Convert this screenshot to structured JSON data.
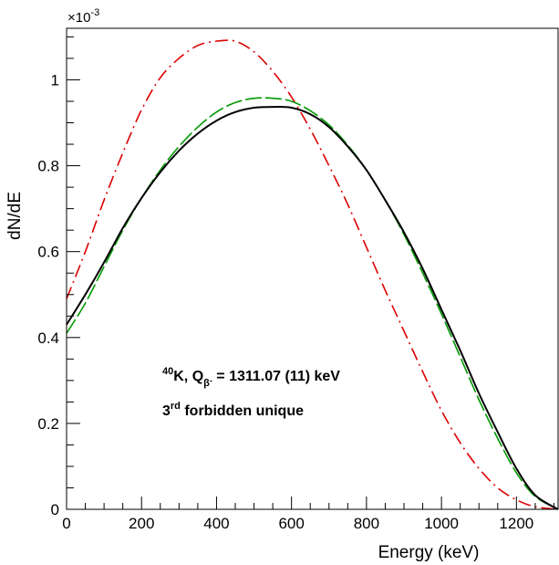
{
  "chart_data": {
    "type": "line",
    "title": "",
    "xlabel": "Energy (keV)",
    "ylabel": "dN/dE",
    "y_multiplier_label": "×10",
    "y_multiplier_exponent": "-3",
    "xlim": [
      0,
      1311.07
    ],
    "ylim": [
      0,
      1.12
    ],
    "x_ticks": [
      0,
      200,
      400,
      600,
      800,
      1000,
      1200
    ],
    "x_tick_labels": [
      "0",
      "200",
      "400",
      "600",
      "800",
      "1000",
      "1200"
    ],
    "y_ticks": [
      0,
      0.2,
      0.4,
      0.6,
      0.8,
      1.0
    ],
    "y_tick_labels": [
      "0",
      "0.2",
      "0.4",
      "0.6",
      "0.8",
      "1"
    ],
    "grid": false,
    "legend": "none",
    "annotation": {
      "line1_super": "40",
      "line1_main": "K, Q",
      "line1_sub": "β",
      "line1_subsup": "-",
      "line1_tail": " = 1311.07 (11) keV",
      "line2_super": "rd",
      "line2_pre": "3",
      "line2_tail": " forbidden unique"
    },
    "series": [
      {
        "color": "#dd0000",
        "dash": "dashdot",
        "x": [
          0,
          50,
          100,
          150,
          200,
          250,
          300,
          350,
          400,
          450,
          500,
          550,
          600,
          650,
          700,
          750,
          800,
          850,
          900,
          950,
          1000,
          1050,
          1100,
          1150,
          1200,
          1250,
          1311
        ],
        "y": [
          0.49,
          0.6,
          0.72,
          0.83,
          0.93,
          1.005,
          1.05,
          1.08,
          1.09,
          1.09,
          1.065,
          1.02,
          0.96,
          0.885,
          0.8,
          0.71,
          0.61,
          0.51,
          0.415,
          0.32,
          0.23,
          0.155,
          0.095,
          0.05,
          0.022,
          0.006,
          0.0
        ]
      },
      {
        "color": "#009900",
        "dash": "longdash",
        "x": [
          0,
          50,
          100,
          150,
          200,
          250,
          300,
          350,
          400,
          450,
          500,
          550,
          600,
          650,
          700,
          750,
          800,
          850,
          900,
          950,
          1000,
          1050,
          1100,
          1150,
          1200,
          1250,
          1311
        ],
        "y": [
          0.41,
          0.48,
          0.565,
          0.65,
          0.725,
          0.79,
          0.845,
          0.89,
          0.925,
          0.947,
          0.957,
          0.957,
          0.95,
          0.928,
          0.895,
          0.848,
          0.79,
          0.72,
          0.64,
          0.55,
          0.455,
          0.355,
          0.255,
          0.165,
          0.085,
          0.03,
          0.0
        ]
      },
      {
        "color": "#000000",
        "dash": "solid",
        "x": [
          0,
          50,
          100,
          150,
          200,
          250,
          300,
          350,
          400,
          450,
          500,
          550,
          600,
          650,
          700,
          750,
          800,
          850,
          900,
          950,
          1000,
          1050,
          1100,
          1150,
          1200,
          1250,
          1311
        ],
        "y": [
          0.43,
          0.5,
          0.575,
          0.655,
          0.725,
          0.785,
          0.835,
          0.875,
          0.905,
          0.925,
          0.935,
          0.937,
          0.935,
          0.92,
          0.89,
          0.845,
          0.79,
          0.72,
          0.645,
          0.56,
          0.465,
          0.37,
          0.27,
          0.18,
          0.095,
          0.033,
          0.0
        ]
      }
    ]
  }
}
